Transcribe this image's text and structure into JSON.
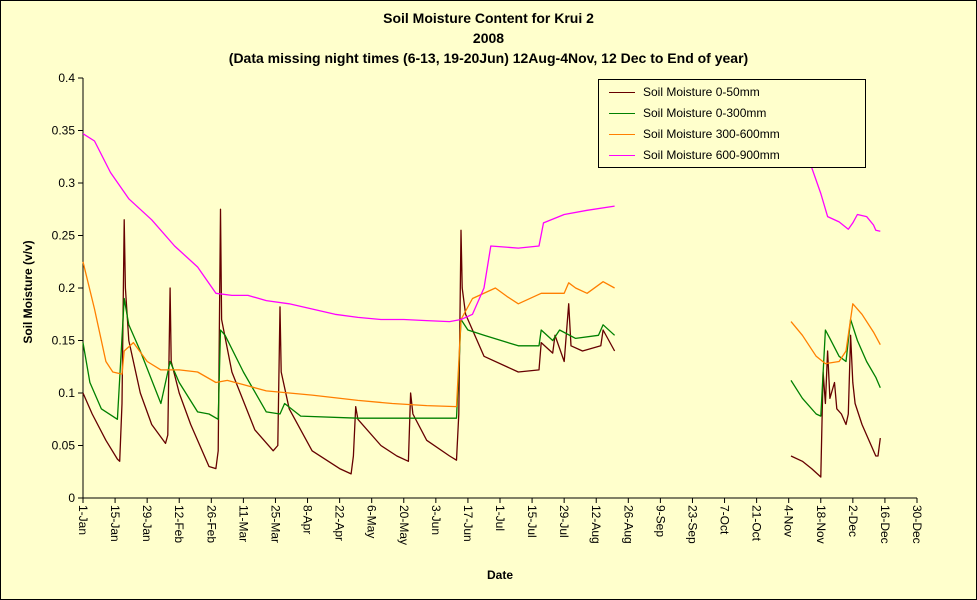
{
  "chart_data": {
    "type": "line",
    "title": "Soil Moisture Content for Krui 2",
    "subtitle": "2008",
    "subtitle2": "(Data missing night times (6-13, 19-20Jun) 12Aug-4Nov, 12 Dec to End of year)",
    "xlabel": "Date",
    "ylabel": "Soil Moisture (v/v)",
    "ylim": [
      0,
      0.4
    ],
    "yticks": [
      "0",
      "0.05",
      "0.1",
      "0.15",
      "0.2",
      "0.25",
      "0.3",
      "0.35",
      "0.4"
    ],
    "xticks": [
      "1-Jan",
      "15-Jan",
      "29-Jan",
      "12-Feb",
      "26-Feb",
      "11-Mar",
      "25-Mar",
      "8-Apr",
      "22-Apr",
      "6-May",
      "20-May",
      "3-Jun",
      "17-Jun",
      "1-Jul",
      "15-Jul",
      "29-Jul",
      "12-Aug",
      "26-Aug",
      "9-Sep",
      "23-Sep",
      "7-Oct",
      "21-Oct",
      "4-Nov",
      "18-Nov",
      "2-Dec",
      "16-Dec",
      "30-Dec"
    ],
    "grid": false,
    "legend_position": "top-right",
    "series": [
      {
        "name": "Soil Moisture 0-50mm",
        "color": "#660000",
        "points": [
          [
            0,
            0.1
          ],
          [
            4,
            0.08
          ],
          [
            10,
            0.055
          ],
          [
            15,
            0.037
          ],
          [
            16,
            0.035
          ],
          [
            17,
            0.09
          ],
          [
            18,
            0.265
          ],
          [
            18.5,
            0.2
          ],
          [
            20,
            0.15
          ],
          [
            25,
            0.1
          ],
          [
            30,
            0.07
          ],
          [
            36,
            0.052
          ],
          [
            37,
            0.06
          ],
          [
            38,
            0.2
          ],
          [
            38.5,
            0.13
          ],
          [
            42,
            0.1
          ],
          [
            47,
            0.07
          ],
          [
            55,
            0.03
          ],
          [
            58,
            0.028
          ],
          [
            59,
            0.045
          ],
          [
            60,
            0.275
          ],
          [
            60.5,
            0.17
          ],
          [
            65,
            0.12
          ],
          [
            75,
            0.065
          ],
          [
            83,
            0.045
          ],
          [
            85,
            0.05
          ],
          [
            86,
            0.182
          ],
          [
            86.5,
            0.12
          ],
          [
            90,
            0.085
          ],
          [
            100,
            0.045
          ],
          [
            112,
            0.028
          ],
          [
            117,
            0.023
          ],
          [
            118,
            0.04
          ],
          [
            119,
            0.087
          ],
          [
            120,
            0.075
          ],
          [
            130,
            0.05
          ],
          [
            137,
            0.04
          ],
          [
            142,
            0.035
          ],
          [
            143,
            0.1
          ],
          [
            144,
            0.08
          ],
          [
            150,
            0.055
          ],
          [
            160,
            0.04
          ],
          [
            163,
            0.036
          ],
          [
            164,
            0.08
          ],
          [
            165,
            0.255
          ],
          [
            165.5,
            0.2
          ],
          [
            167,
            0.175
          ],
          [
            175,
            0.135
          ],
          [
            190,
            0.12
          ],
          [
            199,
            0.122
          ],
          [
            200,
            0.148
          ],
          [
            205,
            0.138
          ],
          [
            206,
            0.155
          ],
          [
            210,
            0.13
          ],
          [
            212,
            0.185
          ],
          [
            213,
            0.145
          ],
          [
            218,
            0.14
          ],
          [
            226,
            0.145
          ],
          [
            227,
            0.16
          ],
          [
            232,
            0.14
          ]
        ]
      },
      {
        "name": "Soil Moisture 0-300mm",
        "color": "#008000",
        "points": [
          [
            0,
            0.148
          ],
          [
            3,
            0.11
          ],
          [
            8,
            0.085
          ],
          [
            15,
            0.075
          ],
          [
            18,
            0.19
          ],
          [
            20,
            0.165
          ],
          [
            25,
            0.14
          ],
          [
            34,
            0.09
          ],
          [
            38,
            0.13
          ],
          [
            42,
            0.11
          ],
          [
            50,
            0.082
          ],
          [
            55,
            0.08
          ],
          [
            59,
            0.075
          ],
          [
            60,
            0.16
          ],
          [
            62,
            0.155
          ],
          [
            70,
            0.12
          ],
          [
            80,
            0.082
          ],
          [
            86,
            0.08
          ],
          [
            88,
            0.09
          ],
          [
            95,
            0.078
          ],
          [
            120,
            0.076
          ],
          [
            150,
            0.076
          ],
          [
            163,
            0.076
          ],
          [
            165,
            0.17
          ],
          [
            168,
            0.16
          ],
          [
            175,
            0.155
          ],
          [
            190,
            0.145
          ],
          [
            199,
            0.145
          ],
          [
            200,
            0.16
          ],
          [
            205,
            0.15
          ],
          [
            208,
            0.16
          ],
          [
            215,
            0.152
          ],
          [
            225,
            0.155
          ],
          [
            227,
            0.165
          ],
          [
            232,
            0.155
          ]
        ]
      },
      {
        "name": "Soil Moisture 300-600mm",
        "color": "#ff7f00",
        "points": [
          [
            0,
            0.225
          ],
          [
            5,
            0.18
          ],
          [
            10,
            0.13
          ],
          [
            13,
            0.12
          ],
          [
            17,
            0.118
          ],
          [
            18,
            0.14
          ],
          [
            22,
            0.148
          ],
          [
            28,
            0.13
          ],
          [
            34,
            0.122
          ],
          [
            42,
            0.122
          ],
          [
            50,
            0.12
          ],
          [
            58,
            0.11
          ],
          [
            63,
            0.112
          ],
          [
            70,
            0.108
          ],
          [
            80,
            0.102
          ],
          [
            100,
            0.098
          ],
          [
            120,
            0.093
          ],
          [
            135,
            0.09
          ],
          [
            150,
            0.088
          ],
          [
            163,
            0.087
          ],
          [
            165,
            0.17
          ],
          [
            170,
            0.19
          ],
          [
            180,
            0.2
          ],
          [
            185,
            0.192
          ],
          [
            190,
            0.185
          ],
          [
            200,
            0.195
          ],
          [
            210,
            0.195
          ],
          [
            212,
            0.205
          ],
          [
            215,
            0.2
          ],
          [
            220,
            0.195
          ],
          [
            227,
            0.206
          ],
          [
            232,
            0.2
          ]
        ]
      },
      {
        "name": "Soil Moisture 600-900mm",
        "color": "#ff00ff",
        "points": [
          [
            0,
            0.347
          ],
          [
            5,
            0.34
          ],
          [
            12,
            0.31
          ],
          [
            20,
            0.285
          ],
          [
            30,
            0.265
          ],
          [
            40,
            0.24
          ],
          [
            50,
            0.22
          ],
          [
            58,
            0.195
          ],
          [
            65,
            0.193
          ],
          [
            72,
            0.193
          ],
          [
            80,
            0.188
          ],
          [
            90,
            0.185
          ],
          [
            100,
            0.18
          ],
          [
            110,
            0.175
          ],
          [
            120,
            0.172
          ],
          [
            130,
            0.17
          ],
          [
            140,
            0.17
          ],
          [
            150,
            0.169
          ],
          [
            160,
            0.168
          ],
          [
            165,
            0.17
          ],
          [
            170,
            0.175
          ],
          [
            175,
            0.2
          ],
          [
            178,
            0.24
          ],
          [
            190,
            0.238
          ],
          [
            199,
            0.24
          ],
          [
            201,
            0.262
          ],
          [
            210,
            0.27
          ],
          [
            220,
            0.274
          ],
          [
            232,
            0.278
          ]
        ]
      },
      {
        "name": "",
        "color": "#660000",
        "points": [
          [
            309,
            0.04
          ],
          [
            314,
            0.035
          ],
          [
            318,
            0.028
          ],
          [
            321,
            0.022
          ],
          [
            322,
            0.02
          ],
          [
            323,
            0.12
          ],
          [
            324,
            0.09
          ],
          [
            325,
            0.14
          ],
          [
            326,
            0.095
          ],
          [
            328,
            0.11
          ],
          [
            329,
            0.085
          ],
          [
            331,
            0.08
          ],
          [
            333,
            0.07
          ],
          [
            334,
            0.08
          ],
          [
            335,
            0.155
          ],
          [
            336,
            0.11
          ],
          [
            337,
            0.09
          ],
          [
            340,
            0.07
          ],
          [
            344,
            0.05
          ],
          [
            346,
            0.04
          ],
          [
            347,
            0.04
          ],
          [
            348,
            0.057
          ]
        ]
      },
      {
        "name": "",
        "color": "#008000",
        "points": [
          [
            309,
            0.112
          ],
          [
            314,
            0.095
          ],
          [
            320,
            0.08
          ],
          [
            322,
            0.078
          ],
          [
            324,
            0.16
          ],
          [
            326,
            0.152
          ],
          [
            330,
            0.135
          ],
          [
            333,
            0.13
          ],
          [
            335,
            0.17
          ],
          [
            338,
            0.15
          ],
          [
            342,
            0.13
          ],
          [
            346,
            0.115
          ],
          [
            348,
            0.105
          ]
        ]
      },
      {
        "name": "",
        "color": "#ff7f00",
        "points": [
          [
            309,
            0.168
          ],
          [
            314,
            0.155
          ],
          [
            320,
            0.135
          ],
          [
            324,
            0.128
          ],
          [
            330,
            0.13
          ],
          [
            333,
            0.14
          ],
          [
            336,
            0.185
          ],
          [
            340,
            0.175
          ],
          [
            345,
            0.158
          ],
          [
            348,
            0.146
          ]
        ]
      },
      {
        "name": "",
        "color": "#ff00ff",
        "points": [
          [
            318,
            0.315
          ],
          [
            322,
            0.29
          ],
          [
            325,
            0.268
          ],
          [
            330,
            0.263
          ],
          [
            334,
            0.256
          ],
          [
            336,
            0.262
          ],
          [
            338,
            0.27
          ],
          [
            342,
            0.268
          ],
          [
            345,
            0.26
          ],
          [
            346,
            0.255
          ],
          [
            348,
            0.254
          ]
        ]
      }
    ]
  }
}
